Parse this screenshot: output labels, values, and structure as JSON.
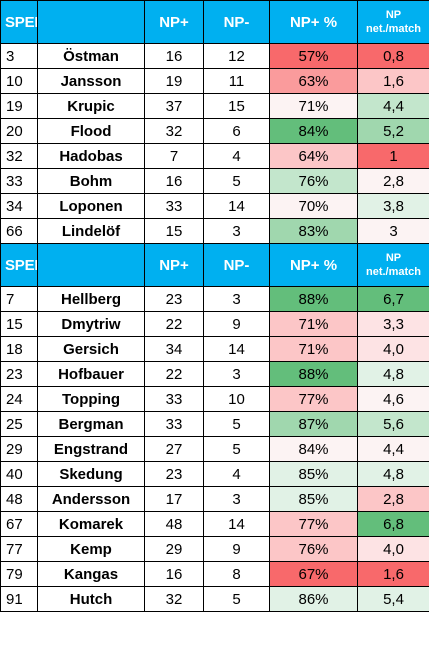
{
  "header": {
    "label": "SPELARBÖRS",
    "col_np_plus": "NP+",
    "col_np_minus": "NP-",
    "col_np_plus_pct": "NP+ %",
    "col_np_net_line1": "NP",
    "col_np_net_line2": "net./match"
  },
  "colors": {
    "header_bg": "#00B0F0",
    "header_text": "#FFFFFF",
    "red_strong": "#F8696B",
    "red_mid": "#FA9B9C",
    "red_light": "#FCC6C7",
    "red_pale": "#FDE3E4",
    "neutral": "#FCF3F3",
    "green_pale": "#E1F2E6",
    "green_light": "#C3E6CC",
    "green_mid": "#A0D7AE",
    "green_strong": "#63BE7B"
  },
  "group1": [
    {
      "num": "3",
      "name": "Östman",
      "np_plus": "16",
      "np_minus": "12",
      "pct": "57%",
      "np": "0,8"
    },
    {
      "num": "10",
      "name": "Jansson",
      "np_plus": "19",
      "np_minus": "11",
      "pct": "63%",
      "np": "1,6"
    },
    {
      "num": "19",
      "name": "Krupic",
      "np_plus": "37",
      "np_minus": "15",
      "pct": "71%",
      "np": "4,4"
    },
    {
      "num": "20",
      "name": "Flood",
      "np_plus": "32",
      "np_minus": "6",
      "pct": "84%",
      "np": "5,2"
    },
    {
      "num": "32",
      "name": "Hadobas",
      "np_plus": "7",
      "np_minus": "4",
      "pct": "64%",
      "np": "1"
    },
    {
      "num": "33",
      "name": "Bohm",
      "np_plus": "16",
      "np_minus": "5",
      "pct": "76%",
      "np": "2,8"
    },
    {
      "num": "34",
      "name": "Loponen",
      "np_plus": "33",
      "np_minus": "14",
      "pct": "70%",
      "np": "3,8"
    },
    {
      "num": "66",
      "name": "Lindelöf",
      "np_plus": "15",
      "np_minus": "3",
      "pct": "83%",
      "np": "3"
    }
  ],
  "group2": [
    {
      "num": "7",
      "name": "Hellberg",
      "np_plus": "23",
      "np_minus": "3",
      "pct": "88%",
      "np": "6,7"
    },
    {
      "num": "15",
      "name": "Dmytriw",
      "np_plus": "22",
      "np_minus": "9",
      "pct": "71%",
      "np": "3,3"
    },
    {
      "num": "18",
      "name": "Gersich",
      "np_plus": "34",
      "np_minus": "14",
      "pct": "71%",
      "np": "4,0"
    },
    {
      "num": "23",
      "name": "Hofbauer",
      "np_plus": "22",
      "np_minus": "3",
      "pct": "88%",
      "np": "4,8"
    },
    {
      "num": "24",
      "name": "Topping",
      "np_plus": "33",
      "np_minus": "10",
      "pct": "77%",
      "np": "4,6"
    },
    {
      "num": "25",
      "name": "Bergman",
      "np_plus": "33",
      "np_minus": "5",
      "pct": "87%",
      "np": "5,6"
    },
    {
      "num": "29",
      "name": "Engstrand",
      "np_plus": "27",
      "np_minus": "5",
      "pct": "84%",
      "np": "4,4"
    },
    {
      "num": "40",
      "name": "Skedung",
      "np_plus": "23",
      "np_minus": "4",
      "pct": "85%",
      "np": "4,8"
    },
    {
      "num": "48",
      "name": "Andersson",
      "np_plus": "17",
      "np_minus": "3",
      "pct": "85%",
      "np": "2,8"
    },
    {
      "num": "67",
      "name": "Komarek",
      "np_plus": "48",
      "np_minus": "14",
      "pct": "77%",
      "np": "6,8"
    },
    {
      "num": "77",
      "name": "Kemp",
      "np_plus": "29",
      "np_minus": "9",
      "pct": "76%",
      "np": "4,0"
    },
    {
      "num": "79",
      "name": "Kangas",
      "np_plus": "16",
      "np_minus": "8",
      "pct": "67%",
      "np": "1,6"
    },
    {
      "num": "91",
      "name": "Hutch",
      "np_plus": "32",
      "np_minus": "5",
      "pct": "86%",
      "np": "5,4"
    }
  ],
  "cell_colors_group1": {
    "pct": [
      "red_strong",
      "red_mid",
      "neutral",
      "green_strong",
      "red_light",
      "green_light",
      "neutral",
      "green_mid"
    ],
    "np": [
      "red_strong",
      "red_light",
      "green_light",
      "green_mid",
      "red_strong",
      "neutral",
      "green_pale",
      "neutral"
    ]
  },
  "cell_colors_group2": {
    "pct": [
      "green_strong",
      "red_light",
      "red_light",
      "green_strong",
      "red_light",
      "green_mid",
      "neutral",
      "green_pale",
      "green_pale",
      "red_light",
      "red_light",
      "red_strong",
      "green_pale"
    ],
    "np": [
      "green_strong",
      "red_pale",
      "red_pale",
      "green_pale",
      "neutral",
      "green_light",
      "neutral",
      "green_pale",
      "red_light",
      "green_strong",
      "red_pale",
      "red_strong",
      "green_pale"
    ]
  }
}
